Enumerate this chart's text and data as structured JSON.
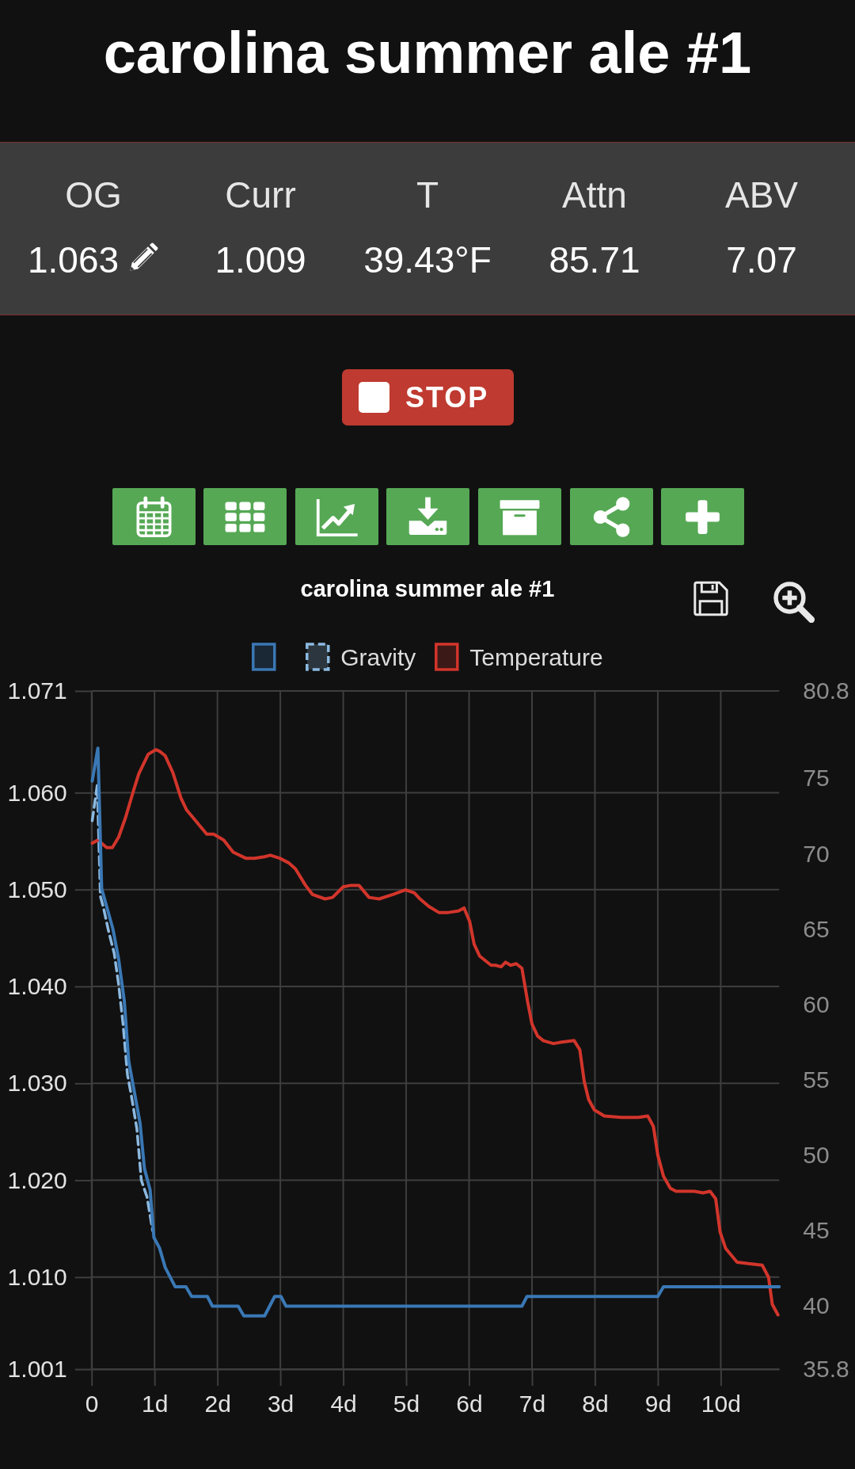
{
  "chart_data": {
    "type": "line",
    "title": "carolina summer ale #1",
    "annotations": [
      "carolina summer ale #1",
      "OG",
      "1.063",
      "Curr",
      "1.009",
      "T",
      "39.43°F",
      "Attn",
      "85.71",
      "ABV",
      "7.07",
      "STOP"
    ],
    "series": [
      {
        "color": "#3a78b5",
        "x": [
          0.01,
          0.1,
          0.16,
          0.34,
          0.43,
          0.52,
          0.59,
          0.77,
          0.84,
          0.93,
          0.99,
          1.08,
          1.17,
          1.33,
          1.5,
          1.59,
          1.84,
          1.92,
          2.33,
          2.42,
          2.75,
          2.91,
          3.01,
          3.09,
          6.84,
          6.92,
          9.0,
          9.09,
          10.93
        ],
        "values": [
          1.0612,
          1.0646,
          1.0501,
          1.0459,
          1.0428,
          1.0385,
          1.0323,
          1.0259,
          1.0212,
          1.019,
          1.0141,
          1.013,
          1.011,
          1.009,
          1.009,
          1.008,
          1.008,
          1.007,
          1.007,
          1.006,
          1.006,
          1.008,
          1.008,
          1.007,
          1.007,
          1.008,
          1.008,
          1.009,
          1.009
        ]
      },
      {
        "name": "Gravity",
        "color": "#8cb9e0",
        "line_style": "dashed",
        "x": [
          0.01,
          0.09,
          0.14,
          0.19,
          0.27,
          0.36,
          0.43,
          0.5,
          0.57,
          0.63,
          0.72,
          0.79,
          0.88,
          0.97
        ],
        "values": [
          1.0571,
          1.0608,
          1.0493,
          1.0481,
          1.0457,
          1.0434,
          1.0402,
          1.0361,
          1.0309,
          1.0288,
          1.0253,
          1.02,
          1.0183,
          1.0148
        ]
      },
      {
        "name": "Temperature",
        "color": "#d2352b",
        "axis": "y2",
        "x": [
          0.01,
          0.1,
          0.24,
          0.33,
          0.43,
          0.54,
          0.66,
          0.75,
          0.9,
          1.02,
          1.08,
          1.17,
          1.29,
          1.42,
          1.51,
          1.65,
          1.83,
          1.94,
          2.1,
          2.25,
          2.45,
          2.59,
          2.75,
          2.84,
          2.99,
          3.13,
          3.24,
          3.4,
          3.51,
          3.71,
          3.83,
          4.0,
          4.12,
          4.25,
          4.41,
          4.57,
          4.79,
          4.99,
          5.13,
          5.22,
          5.36,
          5.52,
          5.67,
          5.83,
          5.92,
          6.01,
          6.08,
          6.17,
          6.35,
          6.42,
          6.51,
          6.58,
          6.66,
          6.75,
          6.84,
          6.93,
          7.0,
          7.09,
          7.18,
          7.34,
          7.47,
          7.67,
          7.76,
          7.83,
          7.9,
          7.99,
          8.15,
          8.42,
          8.57,
          8.69,
          8.84,
          8.93,
          9.0,
          9.09,
          9.2,
          9.29,
          9.58,
          9.72,
          9.83,
          9.92,
          9.99,
          10.08,
          10.26,
          10.44,
          10.66,
          10.76,
          10.82,
          10.91
        ],
        "values": [
          70.7,
          70.9,
          70.4,
          70.4,
          71.1,
          72.4,
          74.1,
          75.3,
          76.6,
          76.9,
          76.8,
          76.5,
          75.4,
          73.7,
          72.9,
          72.2,
          71.3,
          71.3,
          70.9,
          70.1,
          69.7,
          69.7,
          69.8,
          69.9,
          69.7,
          69.4,
          69.0,
          67.9,
          67.3,
          67.0,
          67.1,
          67.8,
          67.9,
          67.9,
          67.1,
          67.0,
          67.3,
          67.6,
          67.4,
          67.0,
          66.5,
          66.1,
          66.1,
          66.2,
          66.4,
          65.5,
          64.0,
          63.2,
          62.6,
          62.6,
          62.5,
          62.8,
          62.6,
          62.7,
          62.4,
          60.2,
          58.7,
          57.9,
          57.6,
          57.4,
          57.5,
          57.6,
          57.0,
          54.9,
          53.7,
          53.0,
          52.6,
          52.5,
          52.5,
          52.5,
          52.6,
          51.9,
          50.0,
          48.6,
          47.8,
          47.6,
          47.6,
          47.5,
          47.6,
          47.1,
          44.9,
          43.8,
          42.9,
          42.8,
          42.7,
          41.9,
          40.1,
          39.4
        ]
      }
    ],
    "xlim": [
      0,
      10.93
    ],
    "xticks": [
      0,
      {
        "value": 1,
        "label": "1d"
      },
      {
        "value": 2,
        "label": "2d"
      },
      {
        "value": 3,
        "label": "3d"
      },
      {
        "value": 4,
        "label": "4d"
      },
      {
        "value": 5,
        "label": "5d"
      },
      {
        "value": 6,
        "label": "6d"
      },
      {
        "value": 7,
        "label": "7d"
      },
      {
        "value": 8,
        "label": "8d"
      },
      {
        "value": 9,
        "label": "9d"
      },
      {
        "value": 10,
        "label": "10d"
      }
    ],
    "ylim": [
      1.0005,
      1.0705
    ],
    "yticks": [
      {
        "value": 1.0005,
        "label": "1.001"
      },
      {
        "value": 1.01,
        "label": "1.010"
      },
      {
        "value": 1.02,
        "label": "1.020"
      },
      {
        "value": 1.03,
        "label": "1.030"
      },
      {
        "value": 1.04,
        "label": "1.040"
      },
      {
        "value": 1.05,
        "label": "1.050"
      },
      {
        "value": 1.06,
        "label": "1.060"
      },
      {
        "value": 1.0705,
        "label": "1.071"
      }
    ],
    "y2lim": [
      35.8,
      80.8
    ],
    "y2ticks": [
      35.8,
      40,
      45,
      50,
      55,
      60,
      65,
      70,
      75,
      80.8
    ],
    "grid": true,
    "legend": "top"
  }
}
